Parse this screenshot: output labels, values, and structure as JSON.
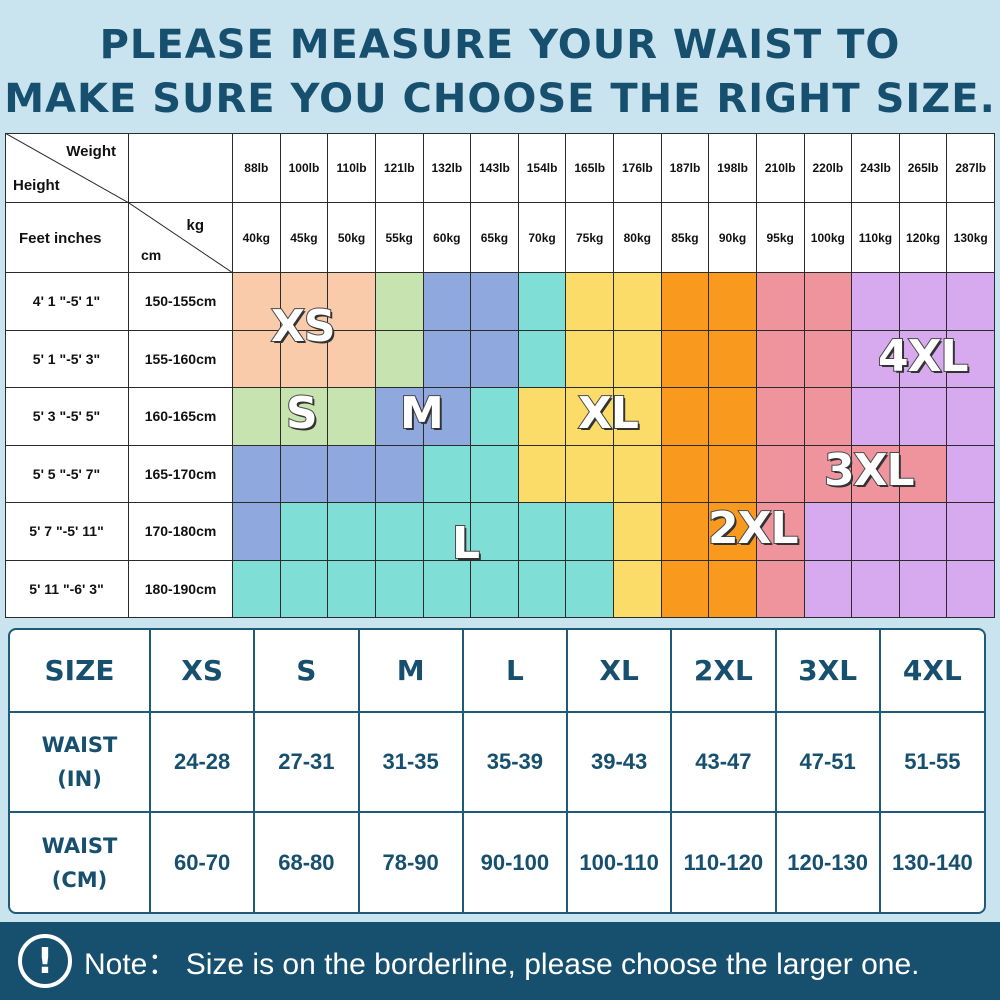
{
  "header": {
    "line1": "PLEASE MEASURE YOUR WAIST TO",
    "line2": "MAKE SURE YOU CHOOSE THE RIGHT SIZE."
  },
  "grid": {
    "corner1": {
      "top_right": "Weight",
      "bottom_left": "Height"
    },
    "corner2": {
      "left": "Feet inches",
      "top_right": "kg",
      "bottom_left": "cm"
    },
    "weights_lb": [
      "88lb",
      "100lb",
      "110lb",
      "121lb",
      "132lb",
      "143lb",
      "154lb",
      "165lb",
      "176lb",
      "187lb",
      "198lb",
      "210lb",
      "220lb",
      "243lb",
      "265lb",
      "287lb"
    ],
    "weights_kg": [
      "40kg",
      "45kg",
      "50kg",
      "55kg",
      "60kg",
      "65kg",
      "70kg",
      "75kg",
      "80kg",
      "85kg",
      "90kg",
      "95kg",
      "100kg",
      "110kg",
      "120kg",
      "130kg"
    ],
    "rows": [
      {
        "feet": "4' 1 \"-5' 1\"",
        "cm": "150-155cm"
      },
      {
        "feet": "5' 1 \"-5' 3\"",
        "cm": "155-160cm"
      },
      {
        "feet": "5' 3 \"-5' 5\"",
        "cm": "160-165cm"
      },
      {
        "feet": "5' 5 \"-5' 7\"",
        "cm": "165-170cm"
      },
      {
        "feet": "5' 7 \"-5' 11\"",
        "cm": "170-180cm"
      },
      {
        "feet": "5' 11 \"-6' 3\"",
        "cm": "180-190cm"
      }
    ],
    "size_map": [
      [
        "XS",
        "XS",
        "XS",
        "S",
        "M",
        "M",
        "L",
        "XL",
        "XL",
        "2XL",
        "2XL",
        "3XL",
        "3XL",
        "4XL",
        "4XL",
        "4XL"
      ],
      [
        "XS",
        "XS",
        "XS",
        "S",
        "M",
        "M",
        "L",
        "XL",
        "XL",
        "2XL",
        "2XL",
        "3XL",
        "3XL",
        "4XL",
        "4XL",
        "4XL"
      ],
      [
        "S",
        "S",
        "S",
        "M",
        "M",
        "L",
        "XL",
        "XL",
        "XL",
        "2XL",
        "2XL",
        "3XL",
        "3XL",
        "4XL",
        "4XL",
        "4XL"
      ],
      [
        "M",
        "M",
        "M",
        "M",
        "L",
        "L",
        "XL",
        "XL",
        "XL",
        "2XL",
        "2XL",
        "3XL",
        "3XL",
        "3XL",
        "3XL",
        "4XL"
      ],
      [
        "M",
        "L",
        "L",
        "L",
        "L",
        "L",
        "L",
        "L",
        "XL",
        "2XL",
        "2XL",
        "3XL",
        "4XL",
        "4XL",
        "4XL",
        "4XL"
      ],
      [
        "L",
        "L",
        "L",
        "L",
        "L",
        "L",
        "L",
        "L",
        "XL",
        "2XL",
        "2XL",
        "3XL",
        "4XL",
        "4XL",
        "4XL",
        "4XL"
      ]
    ],
    "size_colors": {
      "XS": "#f9cbaa",
      "S": "#c7e3b0",
      "M": "#8fa8de",
      "L": "#7fdfd6",
      "XL": "#fcdc68",
      "2XL": "#f99a1e",
      "3XL": "#ef949d",
      "4XL": "#d7a9ef"
    },
    "zone_labels": [
      "XS",
      "S",
      "M",
      "XL",
      "4XL",
      "3XL",
      "2XL",
      "L"
    ]
  },
  "waist_table": {
    "headers": [
      "SIZE",
      "XS",
      "S",
      "M",
      "L",
      "XL",
      "2XL",
      "3XL",
      "4XL"
    ],
    "in_label": [
      "WAIST",
      "(IN)"
    ],
    "in_values": [
      "24-28",
      "27-31",
      "31-35",
      "35-39",
      "39-43",
      "43-47",
      "47-51",
      "51-55"
    ],
    "cm_label": [
      "WAIST",
      "(CM)"
    ],
    "cm_values": [
      "60-70",
      "68-80",
      "78-90",
      "90-100",
      "100-110",
      "110-120",
      "120-130",
      "130-140"
    ]
  },
  "note": {
    "icon": "exclamation-circle-icon",
    "text": "Note： Size is on the borderline, please choose the larger one."
  }
}
